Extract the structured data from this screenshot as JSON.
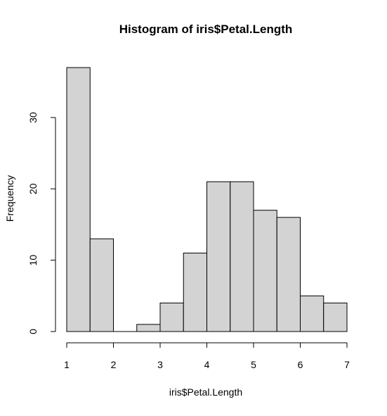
{
  "chart_data": {
    "type": "bar",
    "title": "Histogram of iris$Petal.Length",
    "xlabel": "iris$Petal.Length",
    "ylabel": "Frequency",
    "bins": [
      {
        "start": 1.0,
        "end": 1.5,
        "count": 37
      },
      {
        "start": 1.5,
        "end": 2.0,
        "count": 13
      },
      {
        "start": 2.0,
        "end": 2.5,
        "count": 0
      },
      {
        "start": 2.5,
        "end": 3.0,
        "count": 1
      },
      {
        "start": 3.0,
        "end": 3.5,
        "count": 4
      },
      {
        "start": 3.5,
        "end": 4.0,
        "count": 11
      },
      {
        "start": 4.0,
        "end": 4.5,
        "count": 21
      },
      {
        "start": 4.5,
        "end": 5.0,
        "count": 21
      },
      {
        "start": 5.0,
        "end": 5.5,
        "count": 17
      },
      {
        "start": 5.5,
        "end": 6.0,
        "count": 16
      },
      {
        "start": 6.0,
        "end": 6.5,
        "count": 5
      },
      {
        "start": 6.5,
        "end": 7.0,
        "count": 4
      }
    ],
    "x_ticks": [
      "1",
      "2",
      "3",
      "4",
      "5",
      "6",
      "7"
    ],
    "y_ticks": [
      "0",
      "10",
      "20",
      "30"
    ],
    "xlim": [
      1,
      7
    ],
    "ylim": [
      0,
      37
    ],
    "grid": false,
    "bar_fill": "#d3d3d3",
    "bar_stroke": "#000000"
  }
}
